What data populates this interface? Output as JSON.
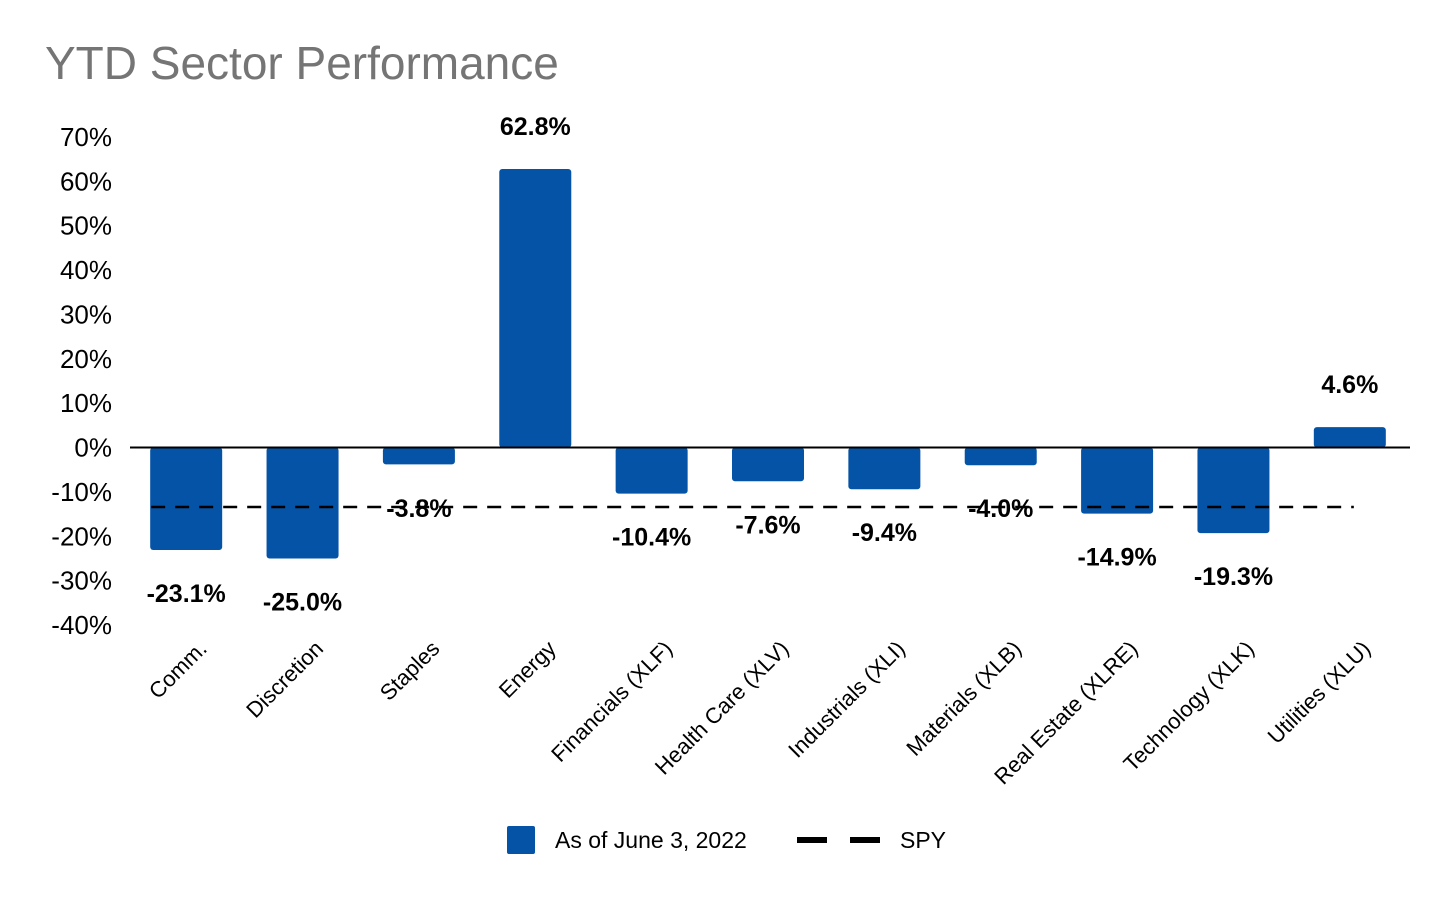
{
  "chart_data": {
    "type": "bar",
    "title": "YTD Sector Performance",
    "xlabel": "",
    "ylabel": "",
    "categories": [
      "Comm.",
      "Discretion",
      "Staples",
      "Energy",
      "Financials (XLF)",
      "Health Care (XLV)",
      "Industrials (XLI)",
      "Materials (XLB)",
      "Real Estate (XLRE)",
      "Technology (XLK)",
      "Utilities (XLU)"
    ],
    "series": [
      {
        "name": "As of June 3, 2022",
        "values": [
          -23.1,
          -25.0,
          -3.8,
          62.8,
          -10.4,
          -7.6,
          -9.4,
          -4.0,
          -14.9,
          -19.3,
          4.6
        ],
        "labels": [
          "-23.1%",
          "-25.0%",
          "-3.8%",
          "62.8%",
          "-10.4%",
          "-7.6%",
          "-9.4%",
          "-4.0%",
          "-14.9%",
          "-19.3%",
          "4.6%"
        ],
        "color": "#0553a6"
      }
    ],
    "reference_line": {
      "name": "SPY",
      "value": -13.4,
      "style": "dashed",
      "color": "#000000"
    },
    "ylim": [
      -40,
      70
    ],
    "yticks": [
      70,
      60,
      50,
      40,
      30,
      20,
      10,
      0,
      -10,
      -20,
      -30,
      -40
    ],
    "ytick_labels": [
      "70%",
      "60%",
      "50%",
      "40%",
      "30%",
      "20%",
      "10%",
      "0%",
      "-10%",
      "-20%",
      "-30%",
      "-40%"
    ],
    "grid": false,
    "legend_position": "bottom"
  }
}
